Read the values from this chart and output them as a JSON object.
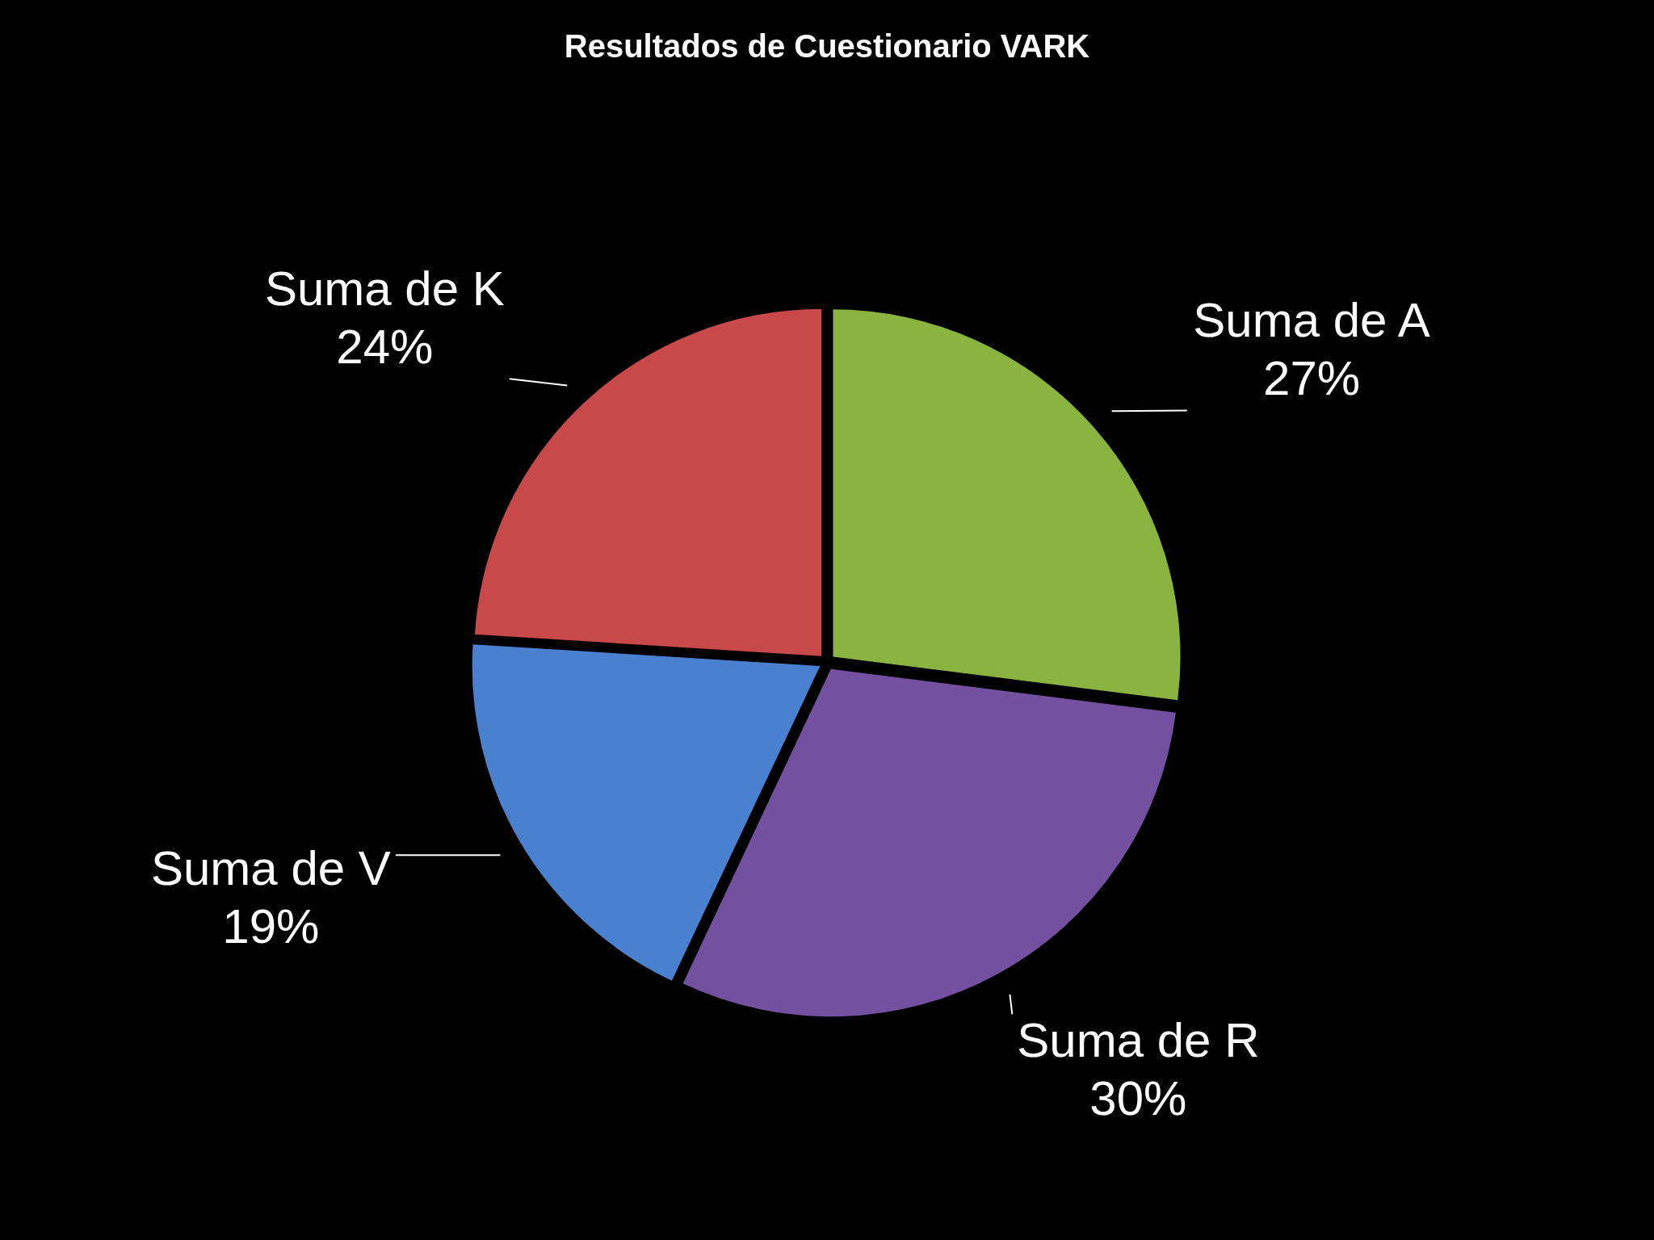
{
  "chart_data": {
    "type": "pie",
    "title": "Resultados de Cuestionario VARK",
    "categories": [
      "Suma de A",
      "Suma de R",
      "Suma de V",
      "Suma de K"
    ],
    "values": [
      27,
      30,
      19,
      24
    ],
    "colors": [
      "#8bb33f",
      "#7451a0",
      "#4a80d0",
      "#c9484a"
    ],
    "value_labels": [
      "27%",
      "30%",
      "19%",
      "24%"
    ],
    "legend": false
  }
}
